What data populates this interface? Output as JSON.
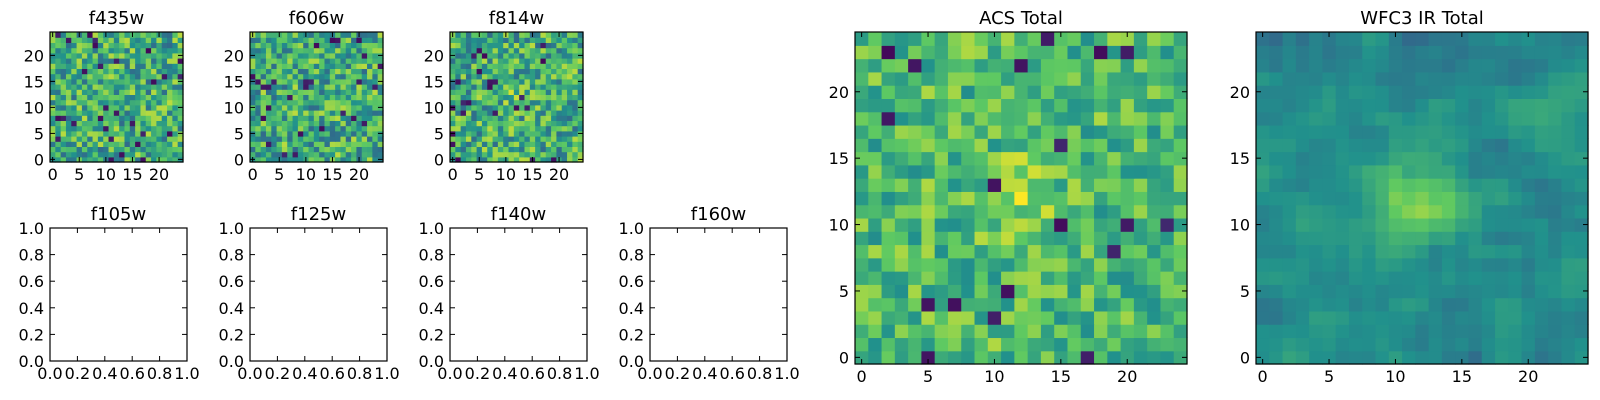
{
  "figure": {
    "colormap": [
      "#440154",
      "#3b528b",
      "#21918c",
      "#5ec962",
      "#fde725"
    ]
  },
  "chart_data": [
    {
      "type": "heatmap",
      "title": "f435w",
      "xlim": [
        -0.5,
        24.5
      ],
      "ylim": [
        -0.5,
        24.5
      ],
      "grid_size": 25,
      "xticks": [
        0,
        5,
        10,
        15,
        20
      ],
      "yticks": [
        0,
        5,
        10,
        15,
        20
      ],
      "xticklabels": [
        "0",
        "5",
        "10",
        "15",
        "20"
      ],
      "yticklabels": [
        "0",
        "5",
        "10",
        "15",
        "20"
      ],
      "seed": 11,
      "blob": 0,
      "style": "noise"
    },
    {
      "type": "heatmap",
      "title": "f606w",
      "xlim": [
        -0.5,
        24.5
      ],
      "ylim": [
        -0.5,
        24.5
      ],
      "grid_size": 25,
      "xticks": [
        0,
        5,
        10,
        15,
        20
      ],
      "yticks": [
        0,
        5,
        10,
        15,
        20
      ],
      "xticklabels": [
        "0",
        "5",
        "10",
        "15",
        "20"
      ],
      "yticklabels": [
        "0",
        "5",
        "10",
        "15",
        "20"
      ],
      "seed": 23,
      "blob": 0,
      "style": "noise"
    },
    {
      "type": "heatmap",
      "title": "f814w",
      "xlim": [
        -0.5,
        24.5
      ],
      "ylim": [
        -0.5,
        24.5
      ],
      "grid_size": 25,
      "xticks": [
        0,
        5,
        10,
        15,
        20
      ],
      "yticks": [
        0,
        5,
        10,
        15,
        20
      ],
      "xticklabels": [
        "0",
        "5",
        "10",
        "15",
        "20"
      ],
      "yticklabels": [
        "0",
        "5",
        "10",
        "15",
        "20"
      ],
      "seed": 37,
      "blob": 0.2,
      "style": "noise"
    },
    {
      "type": "empty",
      "title": "f105w",
      "xlim": [
        0,
        1
      ],
      "ylim": [
        0,
        1
      ],
      "xticks": [
        0,
        0.2,
        0.4,
        0.6,
        0.8,
        1.0
      ],
      "yticks": [
        0,
        0.2,
        0.4,
        0.6,
        0.8,
        1.0
      ],
      "xticklabels": [
        "0.0",
        "0.2",
        "0.4",
        "0.6",
        "0.8",
        "1.0"
      ],
      "yticklabels": [
        "0.0",
        "0.2",
        "0.4",
        "0.6",
        "0.8",
        "1.0"
      ]
    },
    {
      "type": "empty",
      "title": "f125w",
      "xlim": [
        0,
        1
      ],
      "ylim": [
        0,
        1
      ],
      "xticks": [
        0,
        0.2,
        0.4,
        0.6,
        0.8,
        1.0
      ],
      "yticks": [
        0,
        0.2,
        0.4,
        0.6,
        0.8,
        1.0
      ],
      "xticklabels": [
        "0.0",
        "0.2",
        "0.4",
        "0.6",
        "0.8",
        "1.0"
      ],
      "yticklabels": [
        "0.0",
        "0.2",
        "0.4",
        "0.6",
        "0.8",
        "1.0"
      ]
    },
    {
      "type": "empty",
      "title": "f140w",
      "xlim": [
        0,
        1
      ],
      "ylim": [
        0,
        1
      ],
      "xticks": [
        0,
        0.2,
        0.4,
        0.6,
        0.8,
        1.0
      ],
      "yticks": [
        0,
        0.2,
        0.4,
        0.6,
        0.8,
        1.0
      ],
      "xticklabels": [
        "0.0",
        "0.2",
        "0.4",
        "0.6",
        "0.8",
        "1.0"
      ],
      "yticklabels": [
        "0.0",
        "0.2",
        "0.4",
        "0.6",
        "0.8",
        "1.0"
      ]
    },
    {
      "type": "empty",
      "title": "f160w",
      "xlim": [
        0,
        1
      ],
      "ylim": [
        0,
        1
      ],
      "xticks": [
        0,
        0.2,
        0.4,
        0.6,
        0.8,
        1.0
      ],
      "yticks": [
        0,
        0.2,
        0.4,
        0.6,
        0.8,
        1.0
      ],
      "xticklabels": [
        "0.0",
        "0.2",
        "0.4",
        "0.6",
        "0.8",
        "1.0"
      ],
      "yticklabels": [
        "0.0",
        "0.2",
        "0.4",
        "0.6",
        "0.8",
        "1.0"
      ]
    },
    {
      "type": "heatmap",
      "title": "ACS Total",
      "xlim": [
        -0.5,
        24.5
      ],
      "ylim": [
        -0.5,
        24.5
      ],
      "grid_size": 25,
      "xticks": [
        0,
        5,
        10,
        15,
        20
      ],
      "yticks": [
        0,
        5,
        10,
        15,
        20
      ],
      "xticklabels": [
        "0",
        "5",
        "10",
        "15",
        "20"
      ],
      "yticklabels": [
        "0",
        "5",
        "10",
        "15",
        "20"
      ],
      "seed": 53,
      "blob": 0.35,
      "style": "bright"
    },
    {
      "type": "heatmap",
      "title": "WFC3 IR Total",
      "xlim": [
        -0.5,
        24.5
      ],
      "ylim": [
        -0.5,
        24.5
      ],
      "grid_size": 25,
      "xticks": [
        0,
        5,
        10,
        15,
        20
      ],
      "yticks": [
        0,
        5,
        10,
        15,
        20
      ],
      "xticklabels": [
        "0",
        "5",
        "10",
        "15",
        "20"
      ],
      "yticklabels": [
        "0",
        "5",
        "10",
        "15",
        "20"
      ],
      "seed": 71,
      "blob": 0.9,
      "style": "smooth"
    }
  ]
}
